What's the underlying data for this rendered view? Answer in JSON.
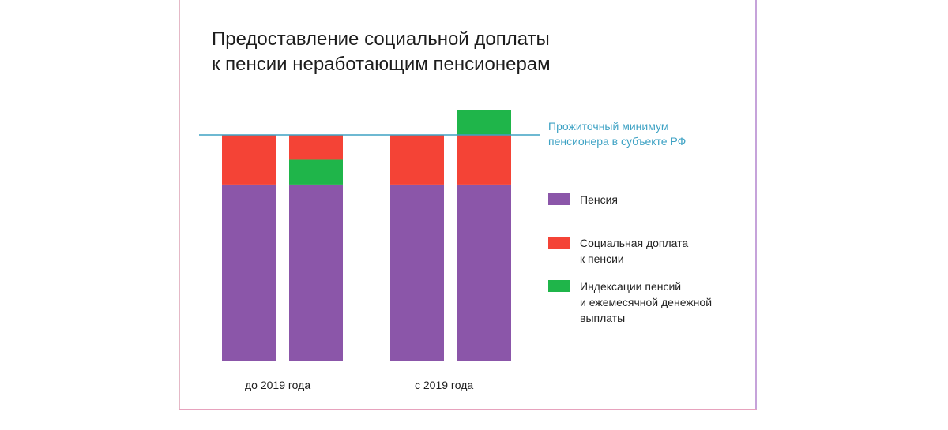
{
  "chart_data": {
    "type": "bar",
    "stacked": true,
    "title": [
      "Предоставление социальной доплаты",
      "к пенсии неработающим пенсионерам"
    ],
    "group_labels": [
      "до 2019 года",
      "с 2019 года"
    ],
    "baseline": {
      "label": [
        "Прожиточный минимум",
        "пенсионера в субъекте РФ"
      ],
      "value": 100,
      "color": "#3ea2c4"
    },
    "ylim": [
      0,
      100
    ],
    "bars": [
      {
        "group": 0,
        "segments": [
          {
            "series": "pension",
            "from": 0,
            "to": 78
          },
          {
            "series": "supplement",
            "from": 78,
            "to": 100
          }
        ]
      },
      {
        "group": 0,
        "segments": [
          {
            "series": "pension",
            "from": 0,
            "to": 78
          },
          {
            "series": "indexation",
            "from": 78,
            "to": 89
          },
          {
            "series": "supplement",
            "from": 89,
            "to": 100
          }
        ]
      },
      {
        "group": 1,
        "segments": [
          {
            "series": "pension",
            "from": 0,
            "to": 78
          },
          {
            "series": "supplement",
            "from": 78,
            "to": 100
          }
        ]
      },
      {
        "group": 1,
        "segments": [
          {
            "series": "pension",
            "from": 0,
            "to": 78
          },
          {
            "series": "supplement",
            "from": 78,
            "to": 100
          },
          {
            "series": "indexation",
            "from": 100,
            "to": 111
          }
        ]
      }
    ],
    "series": [
      {
        "key": "pension",
        "name": "Пенсия",
        "color": "#8b56a9"
      },
      {
        "key": "supplement",
        "name": "Социальная доплата\nк пенсии",
        "color": "#f44336"
      },
      {
        "key": "indexation",
        "name": "Индексации пенсий\nи ежемесячной денежной\nвыплаты",
        "color": "#1fb54a"
      }
    ],
    "grid": false,
    "legend_position": "right"
  }
}
